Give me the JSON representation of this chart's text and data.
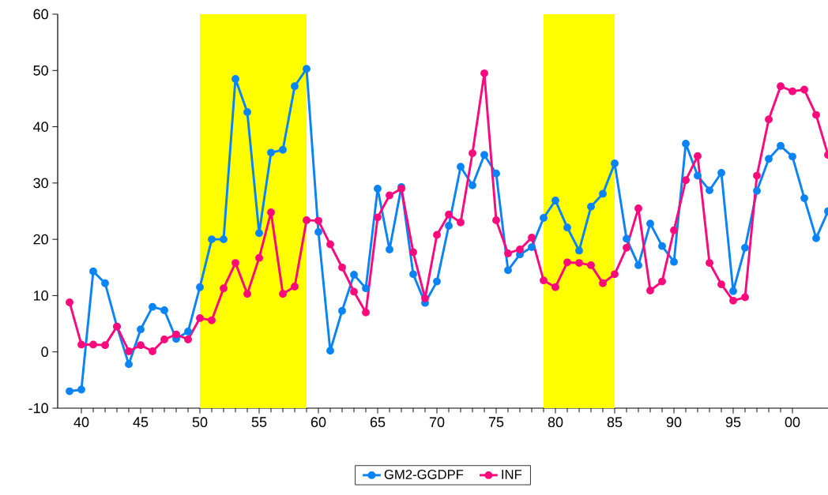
{
  "chart_data": {
    "type": "line",
    "x": [
      1939,
      1940,
      1941,
      1942,
      1943,
      1944,
      1945,
      1946,
      1947,
      1948,
      1949,
      1950,
      1951,
      1952,
      1953,
      1954,
      1955,
      1956,
      1957,
      1958,
      1959,
      1960,
      1961,
      1962,
      1963,
      1964,
      1965,
      1966,
      1967,
      1968,
      1969,
      1970,
      1971,
      1972,
      1973,
      1974,
      1975,
      1976,
      1977,
      1978,
      1979,
      1980,
      1981,
      1982,
      1983,
      1984,
      1985,
      1986,
      1987,
      1988,
      1989,
      1990,
      1991,
      1992,
      1993,
      1994,
      1995,
      1996,
      1997,
      1998,
      1999,
      2000,
      2001,
      2002,
      2003
    ],
    "series": [
      {
        "name": "GM2-GGDPF",
        "color": "#0a84f5",
        "values": [
          -7,
          -6.7,
          14.3,
          12.2,
          4.5,
          -2.2,
          4,
          8,
          7.4,
          2.3,
          3.6,
          11.5,
          20,
          20,
          48.5,
          42.6,
          21.1,
          35.4,
          35.9,
          47.2,
          50.3,
          21.3,
          0.2,
          7.3,
          13.7,
          11.3,
          29,
          18.2,
          29.3,
          13.8,
          8.7,
          12.5,
          22.4,
          32.9,
          29.6,
          35,
          31.7,
          14.5,
          17.3,
          18.6,
          23.8,
          26.9,
          22.1,
          18,
          25.8,
          28.1,
          33.5,
          20.1,
          15.4,
          22.8,
          18.8,
          16,
          37,
          31.3,
          28.7,
          31.8,
          10.8,
          18.5,
          28.6,
          34.3,
          36.6,
          34.7,
          27.3,
          20.2,
          25
        ]
      },
      {
        "name": "INF",
        "color": "#fa0a7c",
        "values": [
          8.8,
          1.3,
          1.3,
          1.2,
          4.5,
          0.1,
          1.2,
          0.1,
          2.2,
          3.1,
          2.2,
          6,
          5.6,
          11.3,
          15.8,
          10.3,
          16.7,
          24.8,
          10.3,
          11.6,
          23.4,
          23.3,
          19.1,
          15,
          10.7,
          7,
          23.9,
          27.8,
          29,
          17.7,
          9.5,
          20.8,
          24.4,
          23,
          35.3,
          49.5,
          23.4,
          17.5,
          18.2,
          20.3,
          12.7,
          11.5,
          15.9,
          15.8,
          15.4,
          12.2,
          13.8,
          18.5,
          25.5,
          10.9,
          12.5,
          21.6,
          30.5,
          34.8,
          15.8,
          12,
          9.1,
          9.7,
          31.3,
          41.3,
          47.2,
          46.3,
          46.6,
          42.1,
          35
        ]
      }
    ],
    "xlim": [
      1938,
      2003
    ],
    "xticks": [
      {
        "value": 1940,
        "label": "40"
      },
      {
        "value": 1945,
        "label": "45"
      },
      {
        "value": 1950,
        "label": "50"
      },
      {
        "value": 1955,
        "label": "55"
      },
      {
        "value": 1960,
        "label": "60"
      },
      {
        "value": 1965,
        "label": "65"
      },
      {
        "value": 1970,
        "label": "70"
      },
      {
        "value": 1975,
        "label": "75"
      },
      {
        "value": 1980,
        "label": "80"
      },
      {
        "value": 1985,
        "label": "85"
      },
      {
        "value": 1990,
        "label": "90"
      },
      {
        "value": 1995,
        "label": "95"
      },
      {
        "value": 2000,
        "label": "00"
      }
    ],
    "ylim": [
      -10,
      60
    ],
    "yticks": [
      -10,
      0,
      10,
      20,
      30,
      40,
      50,
      60
    ],
    "bands": [
      {
        "axis": "x",
        "from": 1950,
        "to": 1959,
        "color": "#ffff00"
      },
      {
        "axis": "x",
        "from": 1979,
        "to": 1985,
        "color": "#ffff00"
      }
    ],
    "marker": "circle",
    "line_style": "solid",
    "legend": "bottom"
  }
}
